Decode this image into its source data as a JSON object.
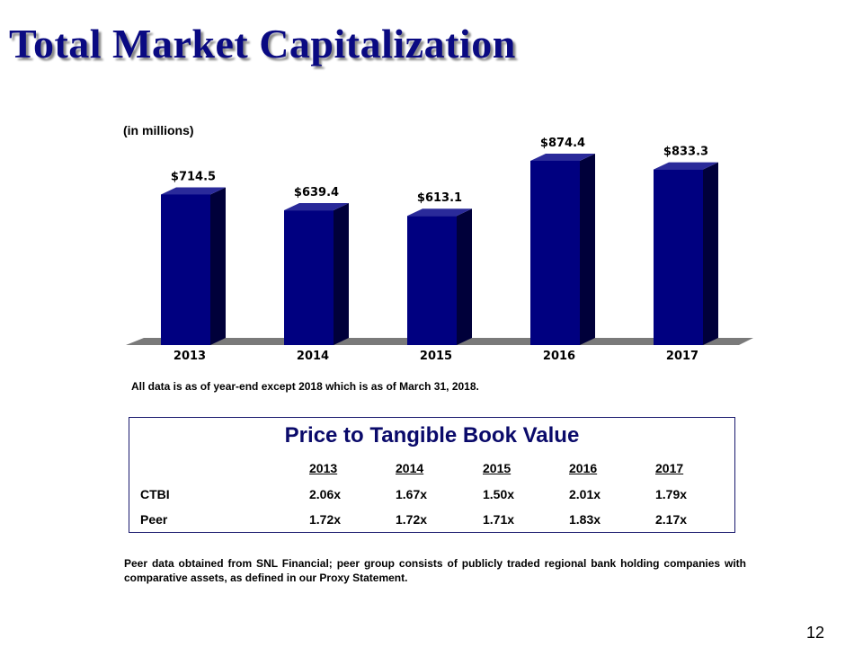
{
  "title": "Total Market Capitalization",
  "chart_data": {
    "type": "bar",
    "units_label": "(in millions)",
    "categories": [
      "2013",
      "2014",
      "2015",
      "2016",
      "2017"
    ],
    "values": [
      714.5,
      639.4,
      613.1,
      874.4,
      833.3
    ],
    "data_labels": [
      "$714.5",
      "$639.4",
      "$613.1",
      "$874.4",
      "$833.3"
    ],
    "bar_color": "#000080",
    "bar_side_color": "#00003a",
    "floor_color": "#7a7a7a"
  },
  "note": "All data is as of year-end except 2018 which is as of March 31, 2018.",
  "ptbv": {
    "title": "Price to Tangible Book Value",
    "years": [
      "2013",
      "2014",
      "2015",
      "2016",
      "2017"
    ],
    "rows": [
      {
        "label": "CTBI",
        "values": [
          "2.06x",
          "1.67x",
          "1.50x",
          "2.01x",
          "1.79x"
        ]
      },
      {
        "label": "Peer",
        "values": [
          "1.72x",
          "1.72x",
          "1.71x",
          "1.83x",
          "2.17x"
        ]
      }
    ]
  },
  "footnote": "Peer data obtained from SNL Financial; peer group consists of publicly traded regional bank holding companies with comparative assets, as defined in our Proxy Statement.",
  "page_number": "12"
}
